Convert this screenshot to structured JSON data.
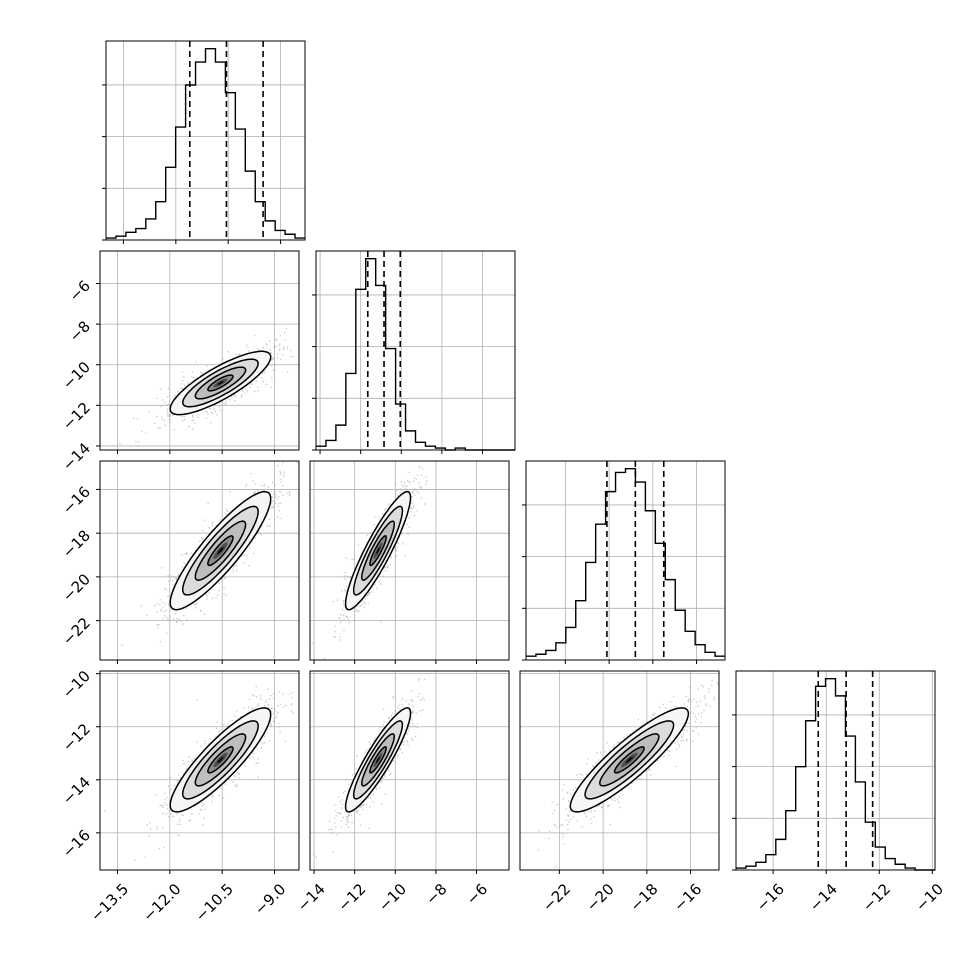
{
  "chart_data": {
    "type": "corner",
    "title": "",
    "parameters": [
      {
        "range": [
          -14.0,
          -8.3
        ],
        "ticks": [
          -13.5,
          -12.0,
          -10.5,
          -9.0
        ],
        "tick_labels": [
          "−13.5",
          "−12.0",
          "−10.5",
          "−9.0"
        ],
        "quantiles": [
          -11.6,
          -10.55,
          -9.5
        ],
        "histogram": [
          0.01,
          0.02,
          0.04,
          0.06,
          0.11,
          0.2,
          0.38,
          0.59,
          0.81,
          0.93,
          1.0,
          0.93,
          0.77,
          0.58,
          0.36,
          0.2,
          0.1,
          0.05,
          0.03,
          0.01
        ]
      },
      {
        "range": [
          -14.2,
          -4.4
        ],
        "ticks": [
          -14,
          -12,
          -10,
          -8,
          -6
        ],
        "tick_labels": [
          "−14",
          "−12",
          "−10",
          "−8",
          "−6"
        ],
        "quantiles": [
          -11.65,
          -10.85,
          -10.05
        ],
        "histogram": [
          0.02,
          0.05,
          0.13,
          0.4,
          0.84,
          1.0,
          0.86,
          0.53,
          0.24,
          0.1,
          0.04,
          0.02,
          0.01,
          0.0,
          0.01,
          0.0,
          0.0,
          0.0,
          0.0,
          0.0
        ]
      },
      {
        "range": [
          -23.8,
          -14.7
        ],
        "ticks": [
          -22,
          -20,
          -18,
          -16
        ],
        "tick_labels": [
          "−22",
          "−20",
          "−18",
          "−16"
        ],
        "quantiles": [
          -20.1,
          -18.8,
          -17.5
        ],
        "histogram": [
          0.02,
          0.03,
          0.05,
          0.09,
          0.17,
          0.31,
          0.51,
          0.71,
          0.88,
          0.98,
          1.0,
          0.93,
          0.78,
          0.61,
          0.42,
          0.26,
          0.15,
          0.08,
          0.04,
          0.02
        ]
      },
      {
        "range": [
          -17.4,
          -9.9
        ],
        "ticks": [
          -16,
          -14,
          -12,
          -10
        ],
        "tick_labels": [
          "−16",
          "−14",
          "−12",
          "−10"
        ],
        "quantiles": [
          -14.3,
          -13.25,
          -12.25
        ],
        "histogram": [
          0.01,
          0.02,
          0.04,
          0.08,
          0.16,
          0.31,
          0.54,
          0.78,
          0.96,
          1.0,
          0.91,
          0.7,
          0.46,
          0.25,
          0.12,
          0.06,
          0.03,
          0.01,
          0.0,
          0.0
        ]
      }
    ],
    "histogram_axis": {
      "visible_ticks": 4,
      "tick_labels": []
    },
    "pairs": [
      {
        "row": 1,
        "col": 0,
        "center": [
          -10.55,
          -10.9
        ],
        "sd": [
          0.72,
          0.78
        ],
        "corr": 0.82
      },
      {
        "row": 2,
        "col": 0,
        "center": [
          -10.55,
          -18.8
        ],
        "sd": [
          0.72,
          1.35
        ],
        "corr": 0.88
      },
      {
        "row": 2,
        "col": 1,
        "center": [
          -10.85,
          -18.8
        ],
        "sd": [
          0.8,
          1.35
        ],
        "corr": 0.9
      },
      {
        "row": 3,
        "col": 0,
        "center": [
          -10.55,
          -13.25
        ],
        "sd": [
          0.72,
          0.98
        ],
        "corr": 0.87
      },
      {
        "row": 3,
        "col": 1,
        "center": [
          -10.85,
          -13.25
        ],
        "sd": [
          0.8,
          0.98
        ],
        "corr": 0.9
      },
      {
        "row": 3,
        "col": 2,
        "center": [
          -18.8,
          -13.25
        ],
        "sd": [
          1.35,
          0.98
        ],
        "corr": 0.89
      }
    ],
    "contour_levels_sigma": [
      0.5,
      1.0,
      1.5,
      2.0
    ],
    "grid": true,
    "legend": "none",
    "colors": {
      "line": "#000000",
      "samples": "#999999",
      "grid": "#b0b0b0",
      "density_scale": [
        "#f6f6f6",
        "#dcdcdc",
        "#bdbdbd",
        "#8a8a8a",
        "#4d4d4d",
        "#000000"
      ]
    }
  }
}
